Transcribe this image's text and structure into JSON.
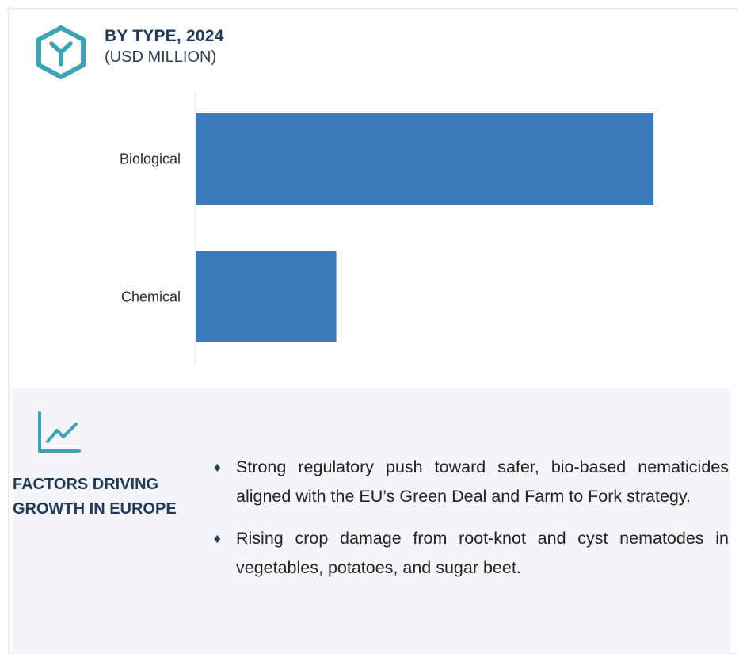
{
  "header": {
    "title": "BY TYPE, 2024",
    "subtitle": "(USD MILLION)"
  },
  "icons": {
    "header": "cube-y-icon",
    "factors": "trend-line-chart-icon",
    "bullet": "diamond-bullet-icon"
  },
  "colors": {
    "bar": "#3b7cbc",
    "accent_teal": "#3aa3b5",
    "title_navy": "#1f3a5c",
    "panel_bg": "#f4f5f9"
  },
  "chart_data": {
    "type": "bar",
    "orientation": "horizontal",
    "categories": [
      "Biological",
      "Chemical"
    ],
    "values": [
      100,
      30.6
    ],
    "value_scale": "relative (no axis printed)",
    "title": "BY TYPE, 2024",
    "subtitle": "(USD MILLION)",
    "xlabel": "",
    "ylabel": "",
    "xlim": [
      0,
      100
    ],
    "grid": false,
    "legend": "none"
  },
  "factors": {
    "title_line1": "FACTORS DRIVING",
    "title_line2": "GROWTH IN EUROPE",
    "bullet_glyph": "♦",
    "items": [
      "Strong regulatory push toward safer, bio-based nematicides aligned with the EU’s Green Deal and Farm to Fork strategy.",
      "Rising crop damage from root-knot and cyst nematodes in vegetables, potatoes, and sugar beet."
    ]
  }
}
